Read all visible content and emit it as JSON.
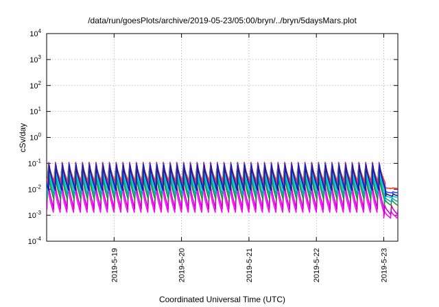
{
  "chart_data": {
    "type": "line",
    "title": "/data/run/goesPlots/archive/2019-05-23/05:00/bryn/../bryn/5daysMars.plot",
    "xlabel": "Coordinated Universal Time (UTC)",
    "ylabel": "cSv/day",
    "yscale": "log",
    "ylim": [
      0.0001,
      10000
    ],
    "xlim": [
      "2019-05-18 00:00",
      "2019-05-23 05:00"
    ],
    "grid": true,
    "x_ticks": [
      "2019-5-19",
      "2019-5-20",
      "2019-5-21",
      "2019-5-22",
      "2019-5-23"
    ],
    "y_ticks": [
      {
        "base": "10",
        "exp": "-4"
      },
      {
        "base": "10",
        "exp": "-3"
      },
      {
        "base": "10",
        "exp": "-2"
      },
      {
        "base": "10",
        "exp": "-1"
      },
      {
        "base": "10",
        "exp": "0"
      },
      {
        "base": "10",
        "exp": "1"
      },
      {
        "base": "10",
        "exp": "2"
      },
      {
        "base": "10",
        "exp": "3"
      },
      {
        "base": "10",
        "exp": "4"
      }
    ],
    "periodic_pattern": {
      "cycles_per_day": 10,
      "peak_time_fraction": 0.1,
      "drop_at_day": 5.0,
      "drop_peak_ratio": 0.08,
      "drop_trough_ratio": 0.6
    },
    "series": [
      {
        "color": "#ff00ff",
        "peak": 0.018,
        "trough": 0.0013
      },
      {
        "color": "#cc00cc",
        "peak": 0.03,
        "trough": 0.0018
      },
      {
        "color": "#2a8a2a",
        "peak": 0.05,
        "trough": 0.004
      },
      {
        "color": "#00aaaa",
        "peak": 0.06,
        "trough": 0.0055
      },
      {
        "color": "#00c8c8",
        "peak": 0.07,
        "trough": 0.008
      },
      {
        "color": "#ff3030",
        "peak": 0.11,
        "trough": 0.018
      },
      {
        "color": "#2040ff",
        "peak": 0.1,
        "trough": 0.012
      },
      {
        "color": "#1a1aa0",
        "peak": 0.085,
        "trough": 0.009
      }
    ]
  }
}
